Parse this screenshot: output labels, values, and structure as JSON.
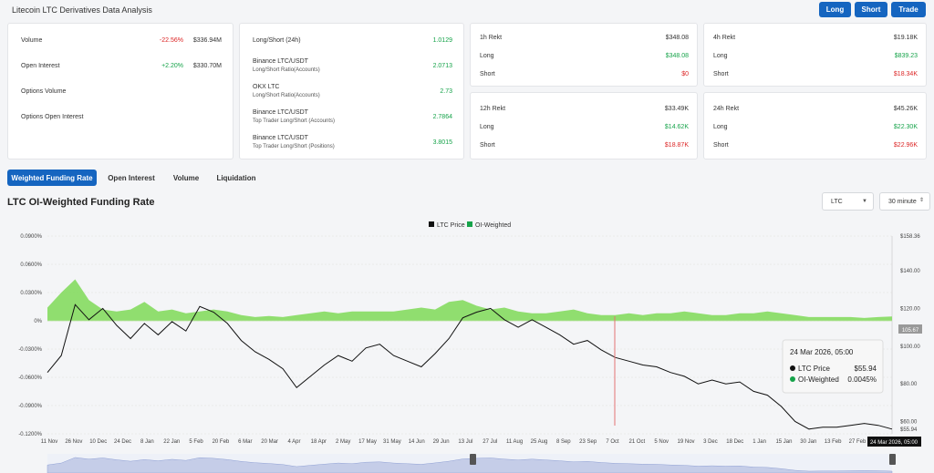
{
  "header": {
    "title": "Litecoin LTC Derivatives Data Analysis",
    "buttons": {
      "long": "Long",
      "short": "Short",
      "trade": "Trade"
    }
  },
  "overview": [
    {
      "label": "Volume",
      "change": "-22.56%",
      "value": "$336.94M",
      "change_color": "red"
    },
    {
      "label": "Open Interest",
      "change": "+2.20%",
      "value": "$330.70M",
      "change_color": "green"
    },
    {
      "label": "Options Volume",
      "change": "",
      "value": ""
    },
    {
      "label": "Options Open Interest",
      "change": "",
      "value": ""
    }
  ],
  "ratios": [
    {
      "label": "Long/Short (24h)",
      "sub": "",
      "value": "1.0129"
    },
    {
      "label": "Binance LTC/USDT",
      "sub": "Long/Short Ratio(Accounts)",
      "value": "2.0713"
    },
    {
      "label": "OKX LTC",
      "sub": "Long/Short Ratio(Accounts)",
      "value": "2.73"
    },
    {
      "label": "Binance LTC/USDT",
      "sub": "Top Trader Long/Short (Accounts)",
      "value": "2.7864"
    },
    {
      "label": "Binance LTC/USDT",
      "sub": "Top Trader Long/Short (Positions)",
      "value": "3.8015"
    }
  ],
  "rekt": [
    {
      "title": "1h Rekt",
      "total": "$348.08",
      "long_label": "Long",
      "long": "$348.08",
      "short_label": "Short",
      "short": "$0"
    },
    {
      "title": "4h Rekt",
      "total": "$19.18K",
      "long_label": "Long",
      "long": "$839.23",
      "short_label": "Short",
      "short": "$18.34K"
    },
    {
      "title": "12h Rekt",
      "total": "$33.49K",
      "long_label": "Long",
      "long": "$14.62K",
      "short_label": "Short",
      "short": "$18.87K"
    },
    {
      "title": "24h Rekt",
      "total": "$45.26K",
      "long_label": "Long",
      "long": "$22.30K",
      "short_label": "Short",
      "short": "$22.96K"
    }
  ],
  "tabs": [
    "Weighted Funding Rate",
    "Open Interest",
    "Volume",
    "Liquidation"
  ],
  "chart_header": {
    "title": "LTC OI-Weighted Funding Rate",
    "coin_select": "LTC",
    "interval_select": "30 minute"
  },
  "tooltip": {
    "date": "24 Mar 2026, 05:00",
    "price_label": "LTC Price",
    "price_value": "$55.94",
    "oi_label": "OI-Weighted",
    "oi_value": "0.0045%"
  },
  "chart_data": {
    "type": "line",
    "title": "",
    "legend": [
      "LTC Price",
      "OI-Weighted"
    ],
    "legend_placement": "top-center",
    "left_axis_ticks": [
      "0.0900%",
      "0.0600%",
      "0.0300%",
      "0%",
      "-0.0300%",
      "-0.0600%",
      "-0.0900%",
      "-0.1200%"
    ],
    "left_axis_values": [
      0.09,
      0.06,
      0.03,
      0,
      -0.03,
      -0.06,
      -0.09,
      -0.12
    ],
    "right_axis_ticks": [
      "$158.36",
      "$140.00",
      "$120.00",
      "$100.00",
      "$80.00",
      "$60.00",
      "$55.94"
    ],
    "right_axis_values": [
      158.36,
      140,
      120,
      100,
      80,
      60,
      55.94
    ],
    "current_price_label": "105.67",
    "x_ticks": [
      "11 Nov",
      "26 Nov",
      "10 Dec",
      "24 Dec",
      "8 Jan",
      "22 Jan",
      "5 Feb",
      "20 Feb",
      "6 Mar",
      "20 Mar",
      "4 Apr",
      "18 Apr",
      "2 May",
      "17 May",
      "31 May",
      "14 Jun",
      "29 Jun",
      "13 Jul",
      "27 Jul",
      "11 Aug",
      "25 Aug",
      "8 Sep",
      "23 Sep",
      "7 Oct",
      "21 Oct",
      "5 Nov",
      "19 Nov",
      "3 Dec",
      "18 Dec",
      "1 Jan",
      "15 Jan",
      "30 Jan",
      "13 Feb",
      "27 Feb"
    ],
    "x_current_label": "24 Mar 2026, 05:00",
    "price_ylim": [
      53.5,
      158.36
    ],
    "funding_ylim": [
      -0.12,
      0.09
    ],
    "price_series": [
      86,
      95,
      122,
      114,
      120,
      111,
      104,
      112,
      106,
      113,
      108,
      121,
      118,
      112,
      103,
      97,
      93,
      88,
      78,
      84,
      90,
      95,
      92,
      99,
      101,
      95,
      92,
      89,
      96,
      104,
      115,
      118,
      120,
      114,
      110,
      114,
      110,
      106,
      101,
      103,
      98,
      94,
      92,
      90,
      89,
      86,
      84,
      80,
      82,
      80,
      81,
      76,
      74,
      68,
      60,
      56,
      57,
      57,
      58,
      59,
      58,
      56
    ],
    "funding_series": [
      0.014,
      0.03,
      0.044,
      0.022,
      0.012,
      0.01,
      0.012,
      0.02,
      0.01,
      0.012,
      0.008,
      0.01,
      0.012,
      0.01,
      0.006,
      0.004,
      0.005,
      0.004,
      0.006,
      0.008,
      0.01,
      0.008,
      0.01,
      0.01,
      0.01,
      0.01,
      0.012,
      0.014,
      0.012,
      0.02,
      0.022,
      0.016,
      0.012,
      0.014,
      0.01,
      0.008,
      0.008,
      0.01,
      0.012,
      0.008,
      0.006,
      0.006,
      0.008,
      0.006,
      0.008,
      0.008,
      0.01,
      0.008,
      0.006,
      0.006,
      0.008,
      0.008,
      0.01,
      0.008,
      0.006,
      0.004,
      0.004,
      0.004,
      0.004,
      0.003,
      0.004,
      0.0045
    ]
  },
  "colors": {
    "accent": "#1565c0",
    "positive": "#16a34a",
    "negative": "#dc2626",
    "funding_fill": "#7ed957",
    "price_line": "#111111"
  }
}
